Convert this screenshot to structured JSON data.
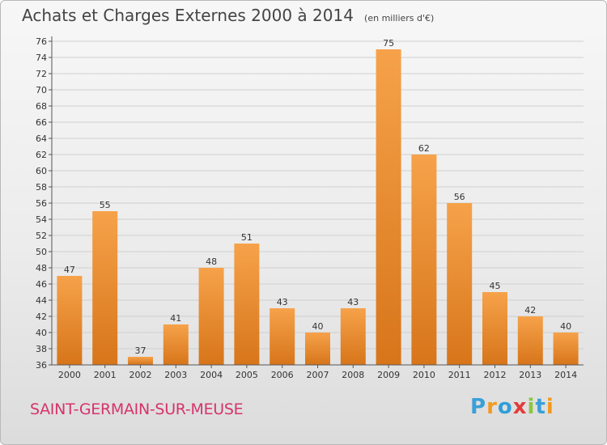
{
  "title": "Achats et Charges Externes 2000 à 2014",
  "subtitle": "(en milliers d'€)",
  "place": "SAINT-GERMAIN-SUR-MEUSE",
  "brand": "Proxiti",
  "brand_colors": [
    "#3aa0d8",
    "#f29a1f",
    "#2f9fd8",
    "#e23b3b",
    "#8cc63f",
    "#3aa0d8",
    "#f29a1f"
  ],
  "colors": {
    "bar_top": "#f6a24a",
    "bar_bottom": "#d7751a",
    "place": "#d6336c"
  },
  "chart_data": {
    "type": "bar",
    "categories": [
      "2000",
      "2001",
      "2002",
      "2003",
      "2004",
      "2005",
      "2006",
      "2007",
      "2008",
      "2009",
      "2010",
      "2011",
      "2012",
      "2013",
      "2014"
    ],
    "values": [
      47,
      55,
      37,
      41,
      48,
      51,
      43,
      40,
      43,
      75,
      62,
      56,
      45,
      42,
      40
    ],
    "title": "Achats et Charges Externes 2000 à 2014",
    "ylim": [
      36,
      76
    ],
    "yticks": [
      36,
      38,
      40,
      42,
      44,
      46,
      48,
      50,
      52,
      54,
      56,
      58,
      60,
      62,
      64,
      66,
      68,
      70,
      72,
      74,
      76
    ],
    "grid": true
  }
}
